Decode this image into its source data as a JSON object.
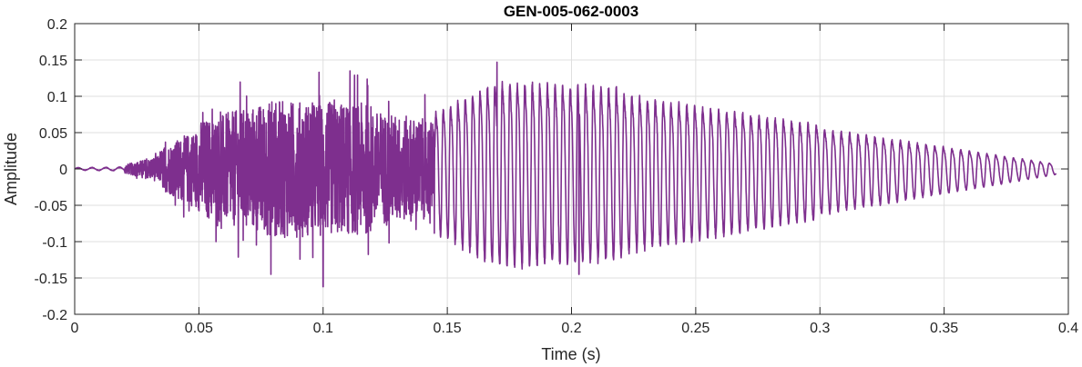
{
  "chart_data": {
    "type": "line",
    "title": "GEN-005-062-0003",
    "xlabel": "Time (s)",
    "ylabel": "Amplitude",
    "xlim": [
      0,
      0.4
    ],
    "ylim": [
      -0.2,
      0.2
    ],
    "grid": true,
    "line_color": "#7E2F8E",
    "x_ticks": [
      0,
      0.05,
      0.1,
      0.15,
      0.2,
      0.25,
      0.3,
      0.35,
      0.4
    ],
    "x_tick_labels": [
      "0",
      "0.05",
      "0.1",
      "0.15",
      "0.2",
      "0.25",
      "0.3",
      "0.35",
      "0.4"
    ],
    "y_ticks": [
      -0.2,
      -0.15,
      -0.1,
      -0.05,
      0,
      0.05,
      0.1,
      0.15,
      0.2
    ],
    "y_tick_labels": [
      "-0.2",
      "-0.15",
      "-0.1",
      "-0.05",
      "0",
      "0.05",
      "0.1",
      "0.15",
      "0.2"
    ],
    "series": [
      {
        "x_start": 0,
        "x_end": 0.395,
        "envelope_segments": [
          {
            "x_start": 0,
            "x_end": 0.02,
            "amplitude_start": 0.002,
            "amplitude_end": 0.003
          },
          {
            "x_start": 0.02,
            "x_end": 0.035,
            "amplitude_start": 0.006,
            "amplitude_end": 0.02
          },
          {
            "x_start": 0.035,
            "x_end": 0.05,
            "amplitude_start": 0.03,
            "amplitude_end": 0.06
          },
          {
            "x_start": 0.05,
            "x_end": 0.08,
            "amplitude_start": 0.07,
            "amplitude_end": 0.1
          },
          {
            "x_start": 0.08,
            "x_end": 0.12,
            "amplitude_start": 0.1,
            "amplitude_end": 0.095
          },
          {
            "x_start": 0.12,
            "x_end": 0.145,
            "amplitude_start": 0.085,
            "amplitude_end": 0.07
          },
          {
            "x_start": 0.145,
            "x_end": 0.17,
            "amplitude_start": 0.09,
            "amplitude_end": 0.14
          },
          {
            "x_start": 0.17,
            "x_end": 0.22,
            "amplitude_start": 0.14,
            "amplitude_end": 0.13
          },
          {
            "x_start": 0.22,
            "x_end": 0.3,
            "amplitude_start": 0.12,
            "amplitude_end": 0.07
          },
          {
            "x_start": 0.3,
            "x_end": 0.395,
            "amplitude_start": 0.065,
            "amplitude_end": 0.008
          }
        ],
        "noise_region": [
          0.02,
          0.145
        ],
        "tonal_region": [
          0.145,
          0.395
        ],
        "tonal_frequency_hz_start": 340,
        "tonal_frequency_hz_end": 275,
        "noted_peaks": [
          {
            "x": 0.079,
            "y": 0.165
          },
          {
            "x": 0.1,
            "y": 0.165
          },
          {
            "x": 0.079,
            "y": -0.145
          },
          {
            "x": 0.1,
            "y": -0.162
          },
          {
            "x": 0.17,
            "y": 0.147
          },
          {
            "x": 0.203,
            "y": -0.145
          }
        ]
      }
    ]
  }
}
